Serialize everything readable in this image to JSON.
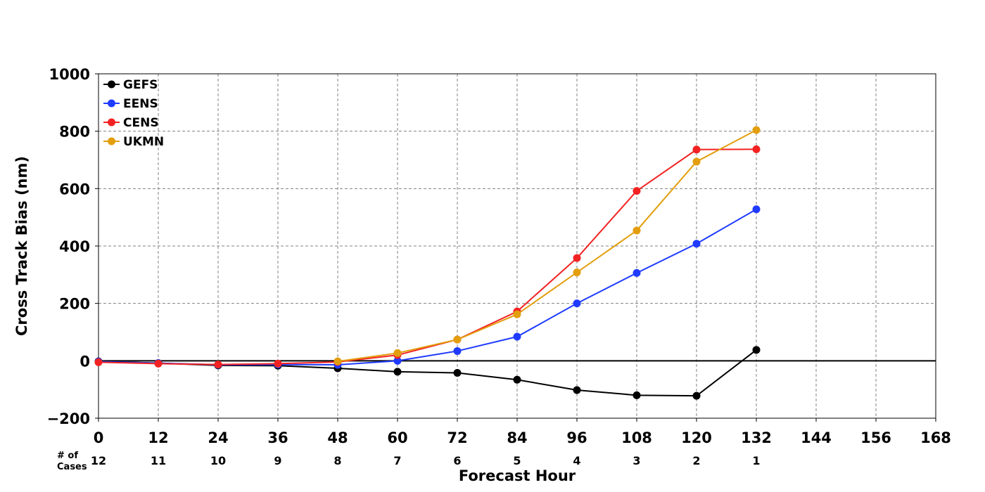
{
  "chart_data": {
    "type": "line",
    "xlabel": "Forecast Hour",
    "ylabel": "Cross Track Bias (nm)",
    "xlim": [
      0,
      168
    ],
    "ylim": [
      -200,
      1000
    ],
    "x_ticks": [
      0,
      12,
      24,
      36,
      48,
      60,
      72,
      84,
      96,
      108,
      120,
      132,
      144,
      156,
      168
    ],
    "y_ticks": [
      -200,
      0,
      200,
      400,
      600,
      800,
      1000
    ],
    "x_tick_labels": [
      "0",
      "12",
      "24",
      "36",
      "48",
      "60",
      "72",
      "84",
      "96",
      "108",
      "120",
      "132",
      "144",
      "156",
      "168"
    ],
    "y_tick_labels": [
      "−200",
      "0",
      "200",
      "400",
      "600",
      "800",
      "1000"
    ],
    "grid": true,
    "legend_position": "top-left",
    "x": [
      0,
      12,
      24,
      36,
      48,
      60,
      72,
      84,
      96,
      108,
      120,
      132
    ],
    "series": [
      {
        "name": "GEFS",
        "color": "#000000",
        "values": [
          -2,
          -8,
          -16,
          -17,
          -26,
          -38,
          -42,
          -66,
          -102,
          -120,
          -122,
          38
        ]
      },
      {
        "name": "EENS",
        "color": "#1f3bff",
        "values": [
          -3,
          -8,
          -14,
          -13,
          -14,
          0,
          34,
          84,
          200,
          306,
          408,
          528
        ]
      },
      {
        "name": "CENS",
        "color": "#f22222",
        "values": [
          -5,
          -10,
          -13,
          -10,
          -4,
          20,
          74,
          172,
          358,
          592,
          736,
          737
        ]
      },
      {
        "name": "UKMN",
        "color": "#e39e0e",
        "values": [
          null,
          null,
          null,
          null,
          -2,
          27,
          74,
          162,
          308,
          454,
          694,
          804
        ]
      }
    ],
    "cases": {
      "title_line1": "# of",
      "title_line2": "Cases",
      "x": [
        0,
        12,
        24,
        36,
        48,
        60,
        72,
        84,
        96,
        108,
        120,
        132
      ],
      "counts": [
        "12",
        "11",
        "10",
        "9",
        "8",
        "7",
        "6",
        "5",
        "4",
        "3",
        "2",
        "1"
      ]
    }
  }
}
